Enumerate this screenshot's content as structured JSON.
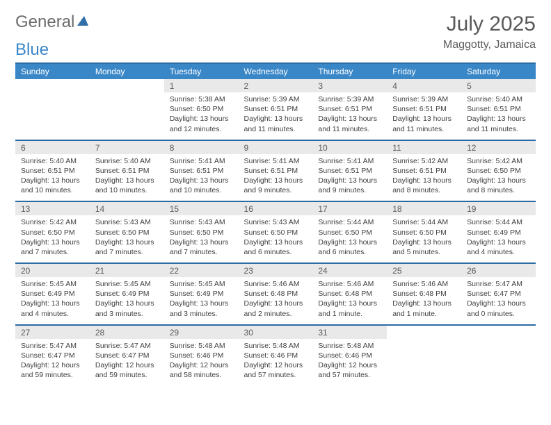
{
  "logo": {
    "text1": "General",
    "text2": "Blue"
  },
  "title": "July 2025",
  "location": "Maggotty, Jamaica",
  "colors": {
    "header_bg": "#3a87c8",
    "header_text": "#ffffff",
    "border": "#2a6aa3",
    "daynum_bg": "#e9e9e9",
    "body_text": "#404040",
    "logo_gray": "#6b6b6b",
    "logo_blue": "#3a87c8"
  },
  "day_names": [
    "Sunday",
    "Monday",
    "Tuesday",
    "Wednesday",
    "Thursday",
    "Friday",
    "Saturday"
  ],
  "weeks": [
    [
      null,
      null,
      {
        "n": "1",
        "sr": "5:38 AM",
        "ss": "6:50 PM",
        "dl": "13 hours and 12 minutes."
      },
      {
        "n": "2",
        "sr": "5:39 AM",
        "ss": "6:51 PM",
        "dl": "13 hours and 11 minutes."
      },
      {
        "n": "3",
        "sr": "5:39 AM",
        "ss": "6:51 PM",
        "dl": "13 hours and 11 minutes."
      },
      {
        "n": "4",
        "sr": "5:39 AM",
        "ss": "6:51 PM",
        "dl": "13 hours and 11 minutes."
      },
      {
        "n": "5",
        "sr": "5:40 AM",
        "ss": "6:51 PM",
        "dl": "13 hours and 11 minutes."
      }
    ],
    [
      {
        "n": "6",
        "sr": "5:40 AM",
        "ss": "6:51 PM",
        "dl": "13 hours and 10 minutes."
      },
      {
        "n": "7",
        "sr": "5:40 AM",
        "ss": "6:51 PM",
        "dl": "13 hours and 10 minutes."
      },
      {
        "n": "8",
        "sr": "5:41 AM",
        "ss": "6:51 PM",
        "dl": "13 hours and 10 minutes."
      },
      {
        "n": "9",
        "sr": "5:41 AM",
        "ss": "6:51 PM",
        "dl": "13 hours and 9 minutes."
      },
      {
        "n": "10",
        "sr": "5:41 AM",
        "ss": "6:51 PM",
        "dl": "13 hours and 9 minutes."
      },
      {
        "n": "11",
        "sr": "5:42 AM",
        "ss": "6:51 PM",
        "dl": "13 hours and 8 minutes."
      },
      {
        "n": "12",
        "sr": "5:42 AM",
        "ss": "6:50 PM",
        "dl": "13 hours and 8 minutes."
      }
    ],
    [
      {
        "n": "13",
        "sr": "5:42 AM",
        "ss": "6:50 PM",
        "dl": "13 hours and 7 minutes."
      },
      {
        "n": "14",
        "sr": "5:43 AM",
        "ss": "6:50 PM",
        "dl": "13 hours and 7 minutes."
      },
      {
        "n": "15",
        "sr": "5:43 AM",
        "ss": "6:50 PM",
        "dl": "13 hours and 7 minutes."
      },
      {
        "n": "16",
        "sr": "5:43 AM",
        "ss": "6:50 PM",
        "dl": "13 hours and 6 minutes."
      },
      {
        "n": "17",
        "sr": "5:44 AM",
        "ss": "6:50 PM",
        "dl": "13 hours and 6 minutes."
      },
      {
        "n": "18",
        "sr": "5:44 AM",
        "ss": "6:50 PM",
        "dl": "13 hours and 5 minutes."
      },
      {
        "n": "19",
        "sr": "5:44 AM",
        "ss": "6:49 PM",
        "dl": "13 hours and 4 minutes."
      }
    ],
    [
      {
        "n": "20",
        "sr": "5:45 AM",
        "ss": "6:49 PM",
        "dl": "13 hours and 4 minutes."
      },
      {
        "n": "21",
        "sr": "5:45 AM",
        "ss": "6:49 PM",
        "dl": "13 hours and 3 minutes."
      },
      {
        "n": "22",
        "sr": "5:45 AM",
        "ss": "6:49 PM",
        "dl": "13 hours and 3 minutes."
      },
      {
        "n": "23",
        "sr": "5:46 AM",
        "ss": "6:48 PM",
        "dl": "13 hours and 2 minutes."
      },
      {
        "n": "24",
        "sr": "5:46 AM",
        "ss": "6:48 PM",
        "dl": "13 hours and 1 minute."
      },
      {
        "n": "25",
        "sr": "5:46 AM",
        "ss": "6:48 PM",
        "dl": "13 hours and 1 minute."
      },
      {
        "n": "26",
        "sr": "5:47 AM",
        "ss": "6:47 PM",
        "dl": "13 hours and 0 minutes."
      }
    ],
    [
      {
        "n": "27",
        "sr": "5:47 AM",
        "ss": "6:47 PM",
        "dl": "12 hours and 59 minutes."
      },
      {
        "n": "28",
        "sr": "5:47 AM",
        "ss": "6:47 PM",
        "dl": "12 hours and 59 minutes."
      },
      {
        "n": "29",
        "sr": "5:48 AM",
        "ss": "6:46 PM",
        "dl": "12 hours and 58 minutes."
      },
      {
        "n": "30",
        "sr": "5:48 AM",
        "ss": "6:46 PM",
        "dl": "12 hours and 57 minutes."
      },
      {
        "n": "31",
        "sr": "5:48 AM",
        "ss": "6:46 PM",
        "dl": "12 hours and 57 minutes."
      },
      null,
      null
    ]
  ],
  "labels": {
    "sunrise": "Sunrise:",
    "sunset": "Sunset:",
    "daylight": "Daylight:"
  }
}
